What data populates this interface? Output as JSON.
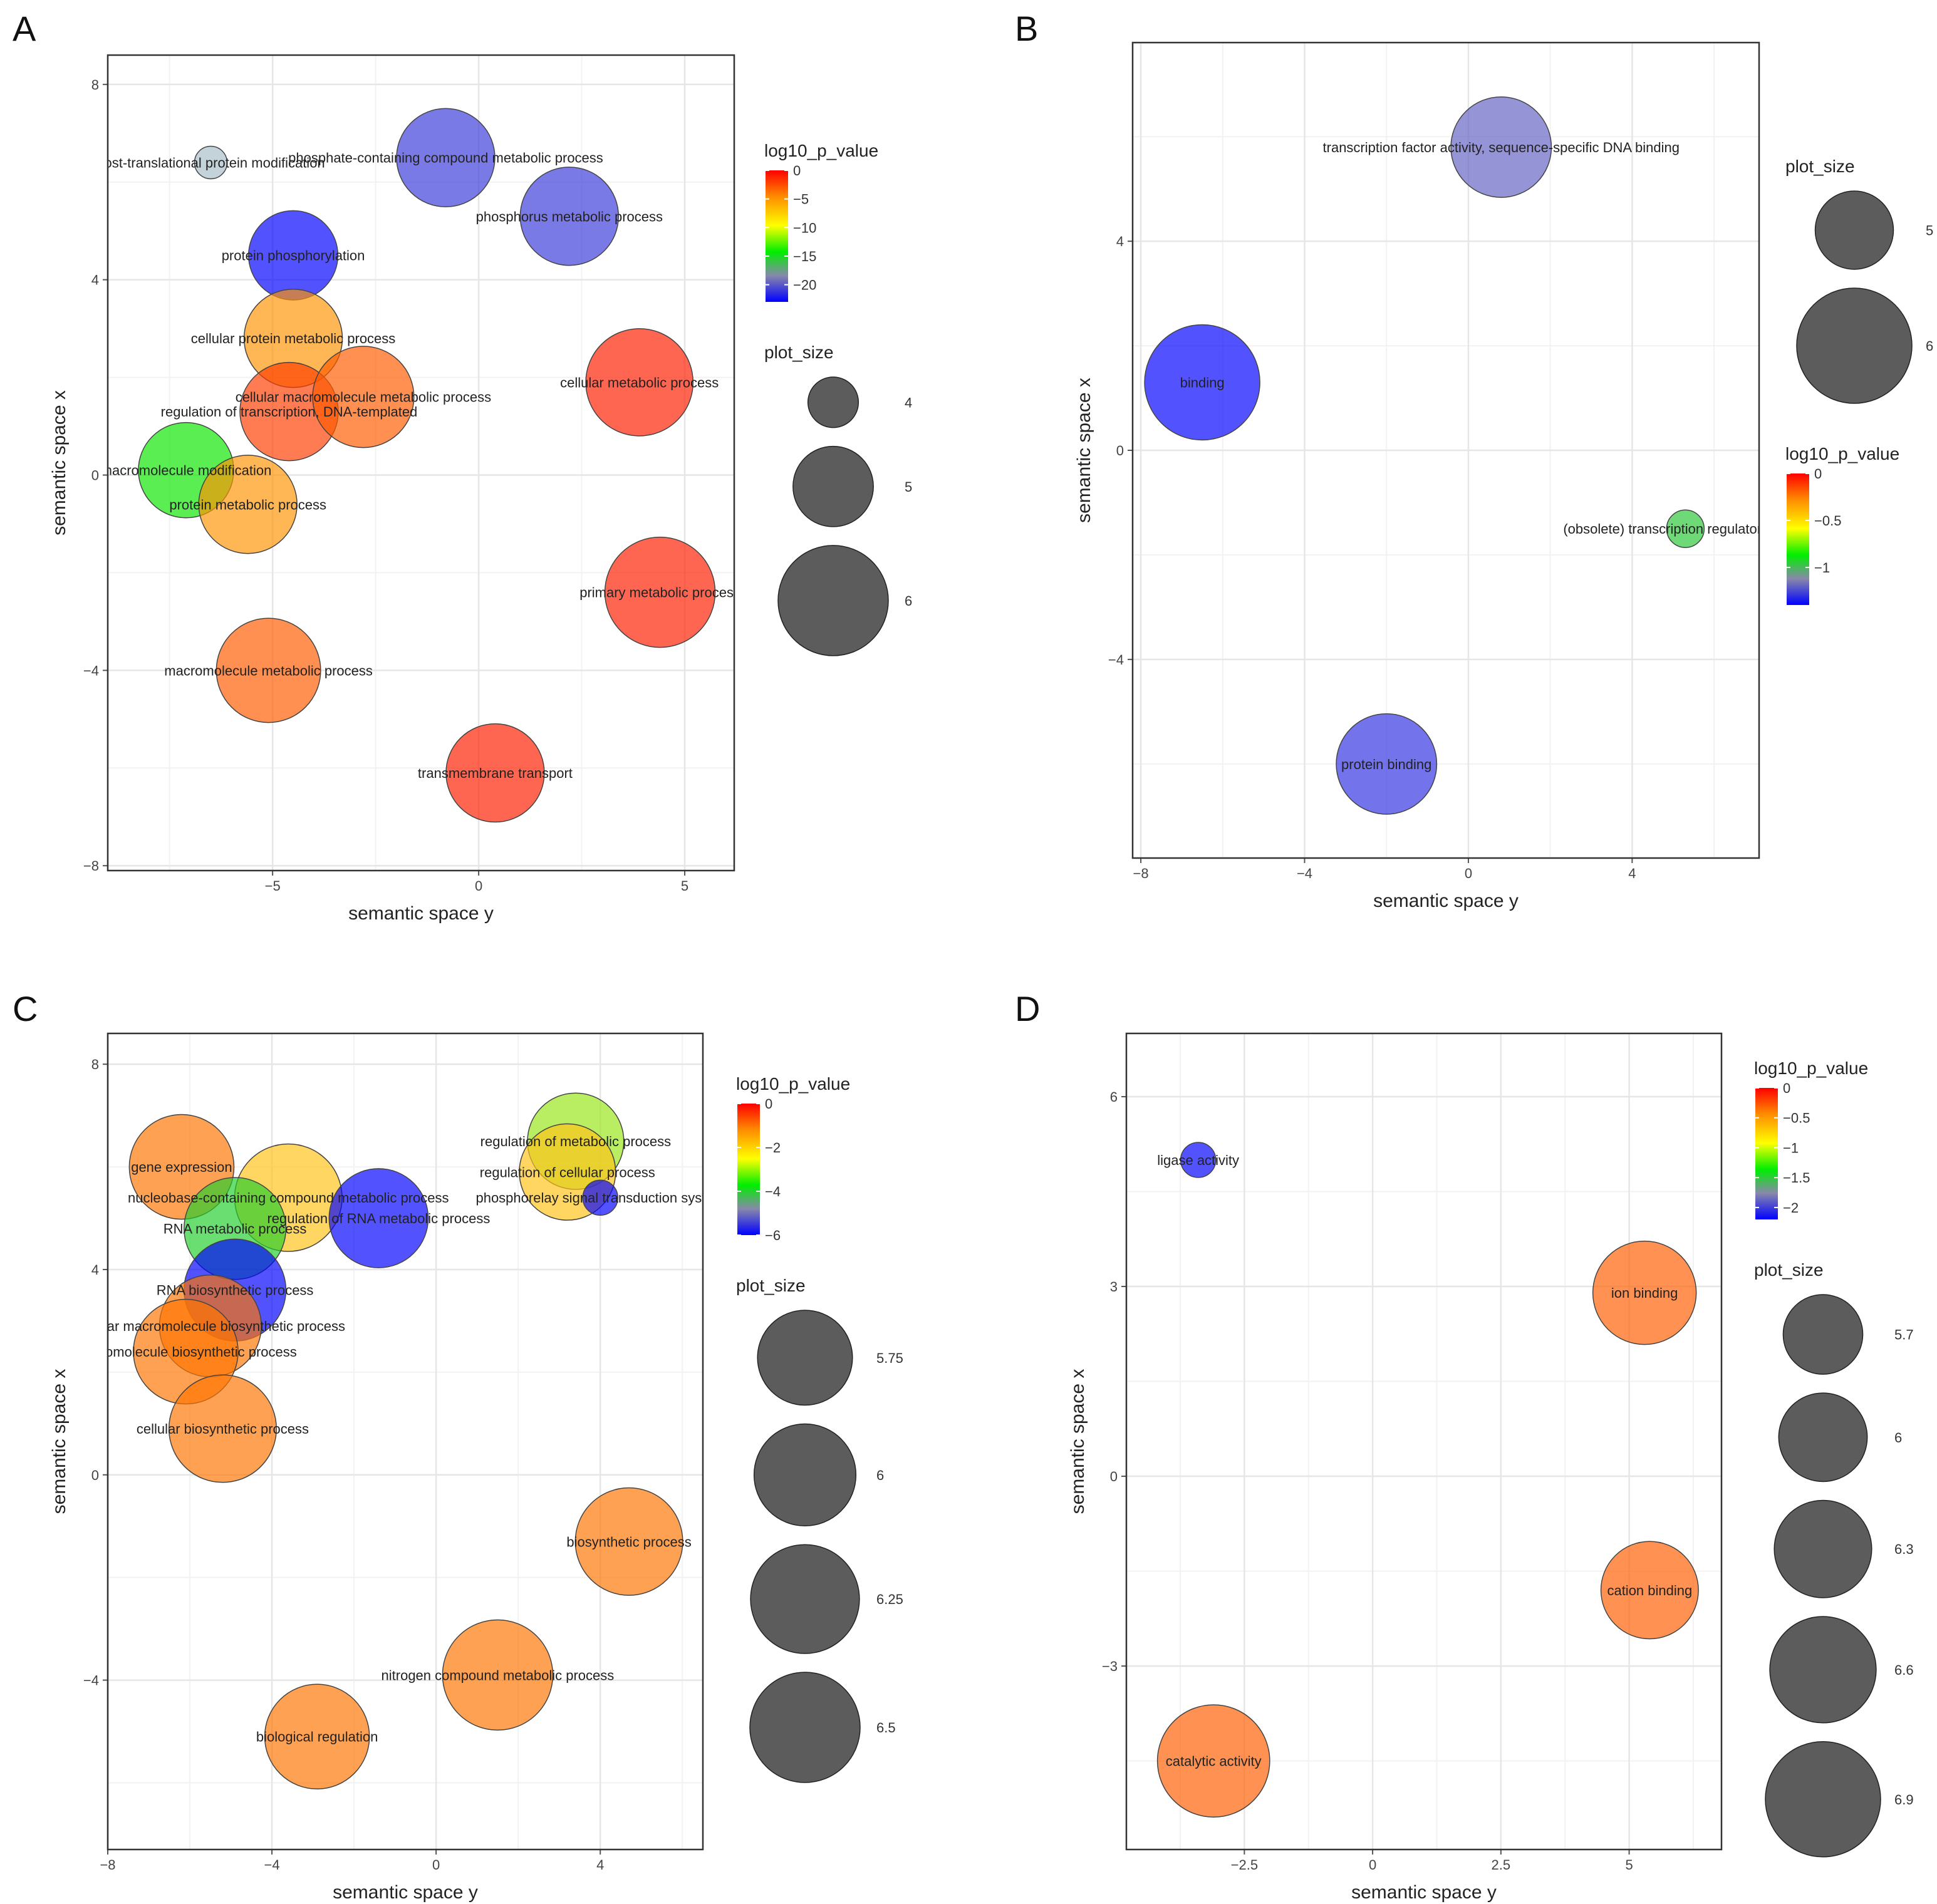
{
  "chart_data": [
    {
      "panel": "A",
      "type": "scatter",
      "xlabel": "semantic space y",
      "ylabel": "semantic space x",
      "xlim": [
        -9,
        6.2
      ],
      "ylim": [
        -8.1,
        8.6
      ],
      "xticks": [
        -5,
        0,
        5
      ],
      "yticks": [
        -8,
        -4,
        0,
        4,
        8
      ],
      "color_legend": {
        "title": "log10_p_value",
        "range": [
          -23,
          0
        ],
        "ticks": [
          0,
          -5,
          -10,
          -15,
          -20
        ]
      },
      "size_legend": {
        "title": "plot_size",
        "values": [
          4,
          5,
          6
        ]
      },
      "points": [
        {
          "label": "post-translational protein modification",
          "x": -6.5,
          "y": 6.4,
          "size": 3.4,
          "log10_p": null
        },
        {
          "label": "phosphate-containing compound metabolic process",
          "x": -0.8,
          "y": 6.5,
          "size": 5.6,
          "log10_p": -21
        },
        {
          "label": "phosphorus metabolic process",
          "x": 2.2,
          "y": 5.3,
          "size": 5.6,
          "log10_p": -21
        },
        {
          "label": "protein phosphorylation",
          "x": -4.5,
          "y": 4.5,
          "size": 5.3,
          "log10_p": -23
        },
        {
          "label": "cellular protein metabolic process",
          "x": -4.5,
          "y": 2.8,
          "size": 5.6,
          "log10_p": -5
        },
        {
          "label": "cellular metabolic process",
          "x": 3.9,
          "y": 1.9,
          "size": 5.9,
          "log10_p": -1
        },
        {
          "label": "regulation of transcription, DNA-templated",
          "x": -4.6,
          "y": 1.3,
          "size": 5.6,
          "log10_p": -2
        },
        {
          "label": "cellular macromolecule metabolic process",
          "x": -2.8,
          "y": 1.6,
          "size": 5.7,
          "log10_p": -3
        },
        {
          "label": "macromolecule modification",
          "x": -7.1,
          "y": 0.1,
          "size": 5.5,
          "log10_p": -14
        },
        {
          "label": "protein metabolic process",
          "x": -5.6,
          "y": -0.6,
          "size": 5.6,
          "log10_p": -5
        },
        {
          "label": "primary metabolic process",
          "x": 4.4,
          "y": -2.4,
          "size": 6.0,
          "log10_p": -1
        },
        {
          "label": "macromolecule metabolic process",
          "x": -5.1,
          "y": -4.0,
          "size": 5.8,
          "log10_p": -3
        },
        {
          "label": "transmembrane transport",
          "x": 0.4,
          "y": -6.1,
          "size": 5.6,
          "log10_p": -1
        }
      ]
    },
    {
      "panel": "B",
      "type": "scatter",
      "xlabel": "semantic space y",
      "ylabel": "semantic space x",
      "xlim": [
        -8.2,
        7.1
      ],
      "ylim": [
        -7.8,
        7.8
      ],
      "xticks": [
        -8,
        -4,
        0,
        4
      ],
      "yticks": [
        -4,
        0,
        4
      ],
      "color_legend": {
        "title": "log10_p_value",
        "range": [
          -1.4,
          0
        ],
        "ticks": [
          0.0,
          -0.5,
          -1.0
        ]
      },
      "size_legend": {
        "title": "plot_size",
        "values": [
          5,
          6
        ]
      },
      "points": [
        {
          "label": "transcription factor activity, sequence-specific DNA binding",
          "x": 0.8,
          "y": 5.8,
          "size": 5.6,
          "log10_p": -1.2
        },
        {
          "label": "binding",
          "x": -6.5,
          "y": 1.3,
          "size": 6.0,
          "log10_p": -1.4
        },
        {
          "label": "(obsolete) transcription regulator activity",
          "x": 5.3,
          "y": -1.5,
          "size": 3.9,
          "log10_p": -0.95
        },
        {
          "label": "protein binding",
          "x": -2.0,
          "y": -6.0,
          "size": 5.6,
          "log10_p": -1.3
        }
      ]
    },
    {
      "panel": "C",
      "type": "scatter",
      "xlabel": "semantic space y",
      "ylabel": "semantic space x",
      "xlim": [
        -8,
        6.5
      ],
      "ylim": [
        -7.3,
        8.6
      ],
      "xticks": [
        -8,
        -4,
        0,
        4
      ],
      "yticks": [
        -4,
        0,
        4,
        8
      ],
      "color_legend": {
        "title": "log10_p_value",
        "range": [
          -6,
          0
        ],
        "ticks": [
          0,
          -2,
          -4,
          -6
        ]
      },
      "size_legend": {
        "title": "plot_size",
        "values": [
          5.75,
          6.0,
          6.25,
          6.5
        ]
      },
      "points": [
        {
          "label": "regulation of metabolic process",
          "x": 3.4,
          "y": 6.5,
          "size": 5.8,
          "log10_p": -3
        },
        {
          "label": "gene expression",
          "x": -6.2,
          "y": 6.0,
          "size": 6.1,
          "log10_p": -1
        },
        {
          "label": "regulation of cellular process",
          "x": 3.2,
          "y": 5.9,
          "size": 5.8,
          "log10_p": -2
        },
        {
          "label": "phosphorelay signal transduction system",
          "x": 4.0,
          "y": 5.4,
          "size": 3.6,
          "log10_p": -6
        },
        {
          "label": "nucleobase-containing compound metabolic process",
          "x": -3.6,
          "y": 5.4,
          "size": 6.2,
          "log10_p": -2
        },
        {
          "label": "regulation of RNA metabolic process",
          "x": -1.4,
          "y": 5.0,
          "size": 5.9,
          "log10_p": -6
        },
        {
          "label": "RNA metabolic process",
          "x": -4.9,
          "y": 4.8,
          "size": 6.0,
          "log10_p": -4
        },
        {
          "label": "RNA biosynthetic process",
          "x": -4.9,
          "y": 3.6,
          "size": 6.0,
          "log10_p": -6
        },
        {
          "label": "cellular macromolecule biosynthetic process",
          "x": -5.5,
          "y": 2.9,
          "size": 6.0,
          "log10_p": -1
        },
        {
          "label": "macromolecule biosynthetic process",
          "x": -6.1,
          "y": 2.4,
          "size": 6.1,
          "log10_p": -1
        },
        {
          "label": "cellular biosynthetic process",
          "x": -5.2,
          "y": 0.9,
          "size": 6.2,
          "log10_p": -1
        },
        {
          "label": "biosynthetic process",
          "x": 4.7,
          "y": -1.3,
          "size": 6.2,
          "log10_p": -1
        },
        {
          "label": "nitrogen compound metabolic process",
          "x": 1.5,
          "y": -3.9,
          "size": 6.3,
          "log10_p": -1
        },
        {
          "label": "biological regulation",
          "x": -2.9,
          "y": -5.1,
          "size": 6.1,
          "log10_p": -1
        }
      ]
    },
    {
      "panel": "D",
      "type": "scatter",
      "xlabel": "semantic space y",
      "ylabel": "semantic space x",
      "xlim": [
        -4.8,
        6.8
      ],
      "ylim": [
        -5.9,
        7.0
      ],
      "xticks": [
        -2.5,
        0.0,
        2.5,
        5.0
      ],
      "yticks": [
        -3,
        0,
        3,
        6
      ],
      "color_legend": {
        "title": "log10_p_value",
        "range": [
          -2.2,
          0
        ],
        "ticks": [
          0.0,
          -0.5,
          -1.0,
          -1.5,
          -2.0
        ]
      },
      "size_legend": {
        "title": "plot_size",
        "values": [
          5.7,
          6.0,
          6.3,
          6.6,
          6.9
        ]
      },
      "points": [
        {
          "label": "ligase activity",
          "x": -3.4,
          "y": 5.0,
          "size": 4.2,
          "log10_p": -2.2
        },
        {
          "label": "ion binding",
          "x": 5.3,
          "y": 2.9,
          "size": 6.5,
          "log10_p": -0.3
        },
        {
          "label": "cation binding",
          "x": 5.4,
          "y": -1.8,
          "size": 6.3,
          "log10_p": -0.3
        },
        {
          "label": "catalytic activity",
          "x": -3.1,
          "y": -4.5,
          "size": 6.8,
          "log10_p": -0.3
        }
      ]
    }
  ]
}
